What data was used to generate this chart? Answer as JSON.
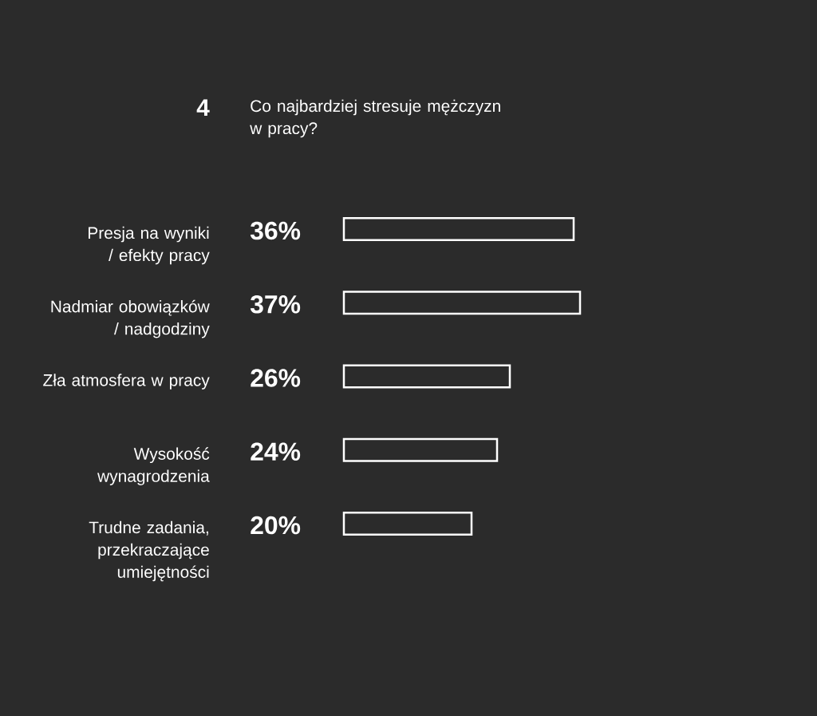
{
  "chart_data": {
    "type": "bar",
    "orientation": "horizontal",
    "title": "Co najbardziej stresuje mężczyzn w pracy?",
    "annotations": [
      "4"
    ],
    "categories": [
      "Presja na wyniki / efekty pracy",
      "Nadmiar obowiązków / nadgodziny",
      "Zła atmosfera w pracy",
      "Wysokość wynagrodzenia",
      "Trudne zadania, przekraczające umiejętności"
    ],
    "values": [
      36,
      37,
      26,
      24,
      20
    ],
    "value_labels": [
      "36%",
      "37%",
      "26%",
      "24%",
      "20%"
    ],
    "color": "#ffffff"
  }
}
